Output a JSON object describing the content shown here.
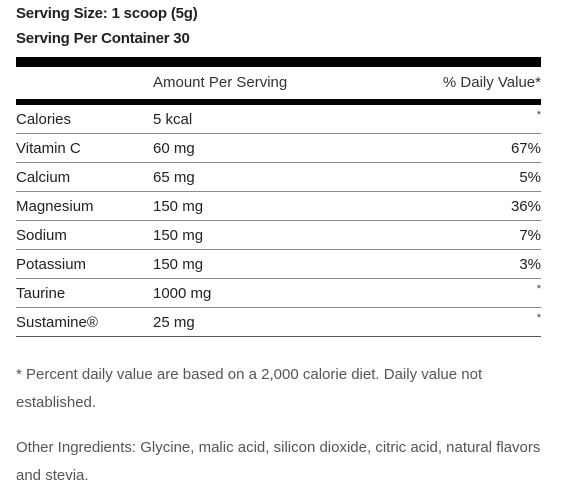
{
  "serving_size": "Serving Size: 1 scoop (5g)",
  "servings_per_container": "Serving Per Container 30",
  "header": {
    "amount": "Amount Per Serving",
    "daily_value": "% Daily Value*"
  },
  "rows": [
    {
      "name": "Calories",
      "amount": "5 kcal",
      "dv": "*"
    },
    {
      "name": "Vitamin C",
      "amount": "60 mg",
      "dv": "67%"
    },
    {
      "name": "Calcium",
      "amount": "65 mg",
      "dv": "5%"
    },
    {
      "name": "Magnesium",
      "amount": "150 mg",
      "dv": "36%"
    },
    {
      "name": "Sodium",
      "amount": "150 mg",
      "dv": "7%"
    },
    {
      "name": "Potassium",
      "amount": "150 mg",
      "dv": "3%"
    },
    {
      "name": "Taurine",
      "amount": "1000 mg",
      "dv": "*"
    },
    {
      "name": "Sustamine®",
      "amount": "25 mg",
      "dv": "*"
    }
  ],
  "footnote": "* Percent daily value are based on a 2,000 calorie diet. Daily value not established.",
  "ingredients": "Other Ingredients: Glycine, malic acid, silicon dioxide, citric acid, natural flavors and stevia."
}
